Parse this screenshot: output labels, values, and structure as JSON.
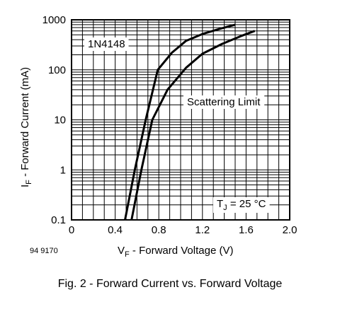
{
  "chart_data": {
    "type": "line",
    "title": "",
    "device": "1N4148",
    "xlabel": "V_F - Forward Voltage (V)",
    "xlabel_main": "V",
    "xlabel_sub": "F",
    "xlabel_rest": " - Forward Voltage (V)",
    "ylabel_main": "I",
    "ylabel_sub": "F",
    "ylabel_rest": " - Forward Current (mA)",
    "ylabel": "I_F - Forward Current (mA)",
    "xlim": [
      0,
      2.0
    ],
    "ylim": [
      0.1,
      1000
    ],
    "y_scale": "log",
    "grid": true,
    "x_ticks": [
      "0",
      "0.4",
      "0.8",
      "1.2",
      "1.6",
      "2.0"
    ],
    "y_ticks": [
      "0.1",
      "1",
      "10",
      "100",
      "1000"
    ],
    "series": [
      {
        "x": [
          0.49,
          0.58,
          0.68,
          0.79,
          0.92,
          1.05,
          1.2,
          1.35,
          1.5
        ],
        "y": [
          0.1,
          1,
          10,
          100,
          220,
          380,
          520,
          650,
          800
        ]
      },
      {
        "x": [
          0.55,
          0.64,
          0.74,
          0.88,
          1.05,
          1.2,
          1.38,
          1.55,
          1.68
        ],
        "y": [
          0.1,
          1,
          10,
          40,
          110,
          210,
          330,
          470,
          600
        ]
      }
    ],
    "annotations": {
      "scattering": "Scattering Limit",
      "temp_main": "T",
      "temp_sub": "J",
      "temp_rest": " = 25 °C"
    }
  },
  "figure_id": "94 9170",
  "caption": "Fig. 2 - Forward Current vs. Forward Voltage"
}
